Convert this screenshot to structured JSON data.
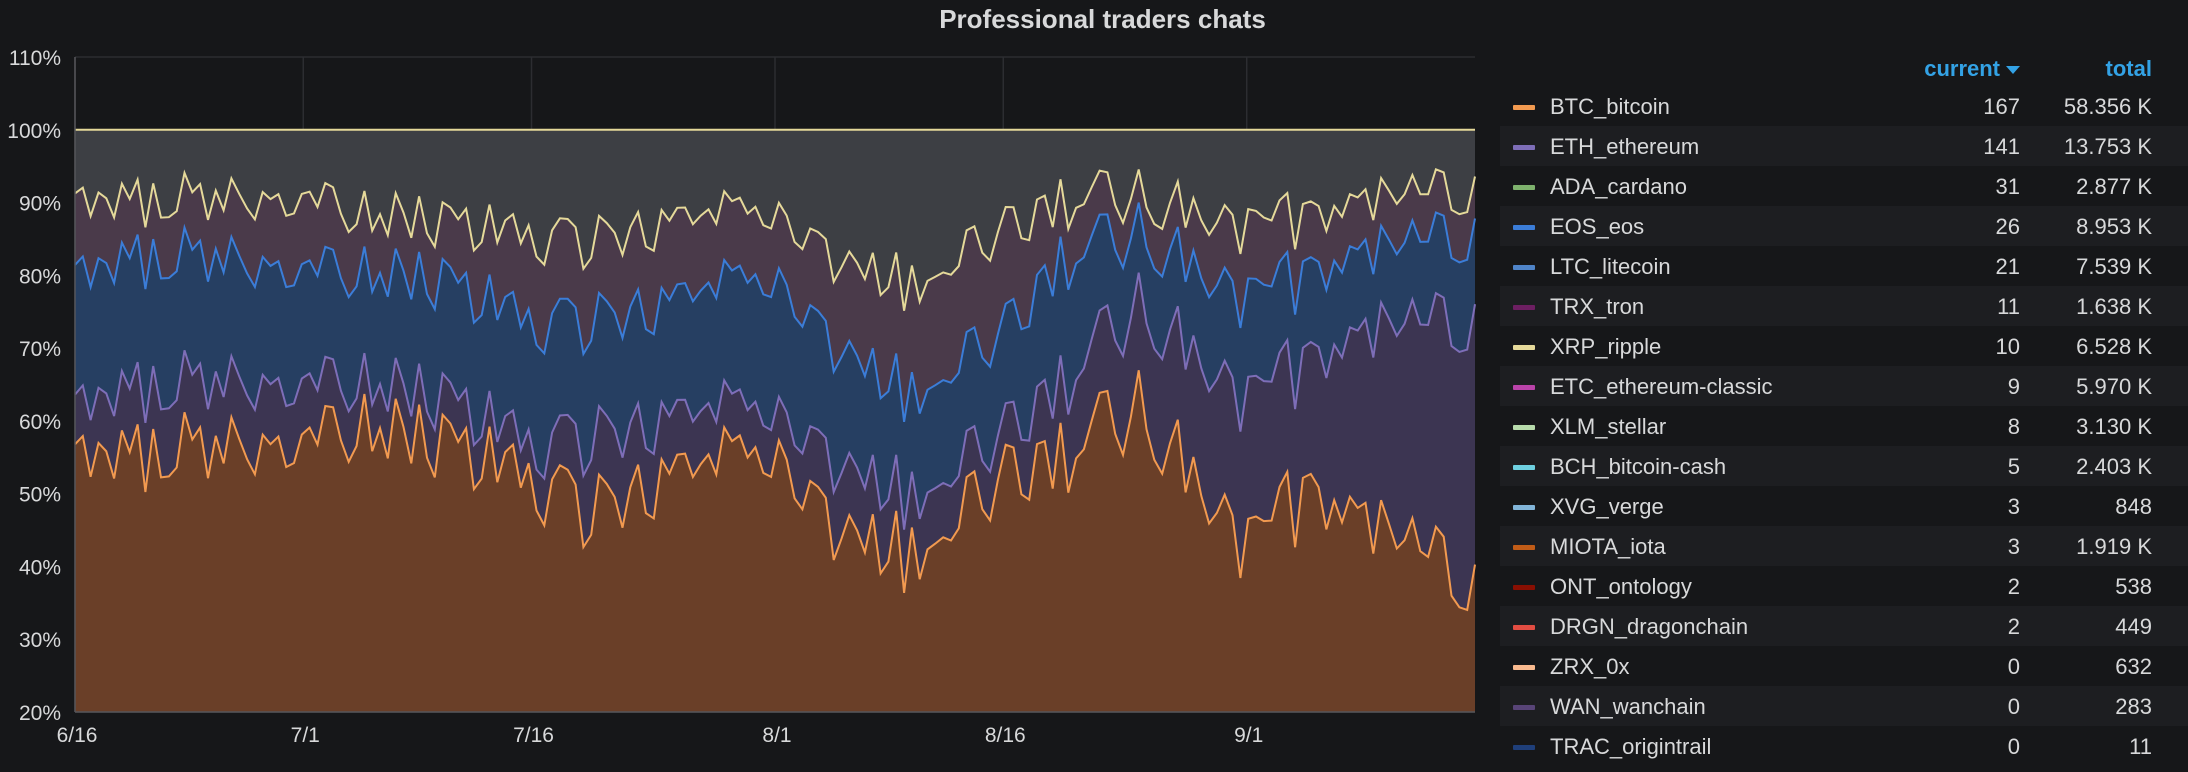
{
  "panel": {
    "title": "Professional traders chats"
  },
  "legend": {
    "header_current": "current",
    "header_total": "total",
    "items": [
      {
        "name": "BTC_bitcoin",
        "color": "#f29a50",
        "current": "167",
        "total": "58.356 K"
      },
      {
        "name": "ETH_ethereum",
        "color": "#7e6eb8",
        "current": "141",
        "total": "13.753 K"
      },
      {
        "name": "ADA_cardano",
        "color": "#7eb26d",
        "current": "31",
        "total": "2.877 K"
      },
      {
        "name": "EOS_eos",
        "color": "#3b7dd8",
        "current": "26",
        "total": "8.953 K"
      },
      {
        "name": "LTC_litecoin",
        "color": "#4f84c8",
        "current": "21",
        "total": "7.539 K"
      },
      {
        "name": "TRX_tron",
        "color": "#6d1f62",
        "current": "11",
        "total": "1.638 K"
      },
      {
        "name": "XRP_ripple",
        "color": "#e5d99a",
        "current": "10",
        "total": "6.528 K"
      },
      {
        "name": "ETC_ethereum-classic",
        "color": "#ba43a9",
        "current": "9",
        "total": "5.970 K"
      },
      {
        "name": "XLM_stellar",
        "color": "#b7dbab",
        "current": "8",
        "total": "3.130 K"
      },
      {
        "name": "BCH_bitcoin-cash",
        "color": "#6ed0e0",
        "current": "5",
        "total": "2.403 K"
      },
      {
        "name": "XVG_verge",
        "color": "#82b5d8",
        "current": "3",
        "total": "848"
      },
      {
        "name": "MIOTA_iota",
        "color": "#c15c17",
        "current": "3",
        "total": "1.919 K"
      },
      {
        "name": "ONT_ontology",
        "color": "#890f02",
        "current": "2",
        "total": "538"
      },
      {
        "name": "DRGN_dragonchain",
        "color": "#e24d42",
        "current": "2",
        "total": "449"
      },
      {
        "name": "ZRX_0x",
        "color": "#f9ba8f",
        "current": "0",
        "total": "632"
      },
      {
        "name": "WAN_wanchain",
        "color": "#584477",
        "current": "0",
        "total": "283"
      },
      {
        "name": "TRAC_origintrail",
        "color": "#1f3f7a",
        "current": "0",
        "total": "11"
      }
    ]
  },
  "chart_data": {
    "type": "area",
    "stacked": true,
    "title": "Professional traders chats",
    "y_tick_labels": [
      "20%",
      "30%",
      "40%",
      "50%",
      "60%",
      "70%",
      "80%",
      "90%",
      "100%",
      "110%"
    ],
    "ylim": [
      20,
      110
    ],
    "x_tick_labels": [
      "6/16",
      "7/1",
      "7/16",
      "8/1",
      "8/16",
      "9/1"
    ],
    "x_range": [
      "2018-06-16",
      "2018-09-16"
    ],
    "grid": true,
    "legend_position": "right",
    "cumulative_top_percent_approx": [
      {
        "name": "BTC_bitcoin",
        "date": [
          "6/16",
          "6/20",
          "6/25",
          "7/1",
          "7/5",
          "7/10",
          "7/16",
          "7/20",
          "7/25",
          "8/1",
          "8/5",
          "8/10",
          "8/16",
          "8/20",
          "8/25",
          "9/1",
          "9/5",
          "9/10",
          "9/16"
        ],
        "values": [
          55,
          55,
          57,
          55,
          60,
          58,
          50,
          48,
          52,
          56,
          45,
          42,
          52,
          55,
          62,
          42,
          50,
          44,
          38
        ]
      },
      {
        "name": "ETH_ethereum",
        "date": [
          "6/16",
          "6/20",
          "6/25",
          "7/1",
          "7/5",
          "7/10",
          "7/16",
          "7/20",
          "7/25",
          "8/1",
          "8/5",
          "8/10",
          "8/16",
          "8/20",
          "8/25",
          "9/1",
          "9/5",
          "9/10",
          "9/16"
        ],
        "values": [
          62,
          64,
          66,
          63,
          66,
          64,
          55,
          58,
          60,
          62,
          54,
          50,
          58,
          65,
          76,
          62,
          68,
          72,
          74
        ]
      },
      {
        "name": "EOS_eos",
        "date": [
          "6/16",
          "6/20",
          "6/25",
          "7/1",
          "7/5",
          "7/10",
          "7/16",
          "7/20",
          "7/25",
          "8/1",
          "8/5",
          "8/10",
          "8/16",
          "8/20",
          "8/25",
          "9/1",
          "9/5",
          "9/10",
          "9/16"
        ],
        "values": [
          80,
          82,
          83,
          79,
          81,
          80,
          72,
          74,
          76,
          80,
          70,
          64,
          72,
          82,
          86,
          76,
          80,
          83,
          86
        ]
      },
      {
        "name": "XRP_ripple",
        "date": [
          "6/16",
          "6/20",
          "6/25",
          "7/1",
          "7/5",
          "7/10",
          "7/16",
          "7/20",
          "7/25",
          "8/1",
          "8/5",
          "8/10",
          "8/16",
          "8/20",
          "8/25",
          "9/1",
          "9/5",
          "9/10",
          "9/16"
        ],
        "values": [
          90,
          90,
          91,
          89,
          89,
          88,
          84,
          85,
          87,
          89,
          82,
          79,
          86,
          90,
          91,
          86,
          88,
          90,
          92
        ]
      }
    ]
  }
}
